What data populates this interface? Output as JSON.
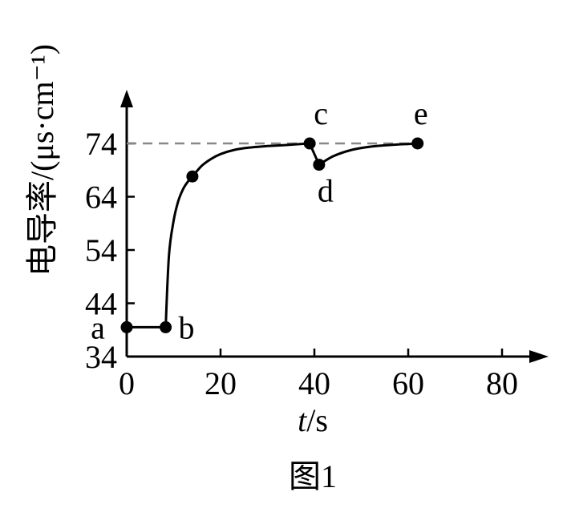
{
  "chart_data": {
    "type": "line",
    "title": "",
    "xlabel": "t/s",
    "ylabel": "电导率/(μs·cm⁻¹)",
    "caption": "图1",
    "xlim": [
      0,
      90
    ],
    "ylim": [
      34,
      82
    ],
    "x_ticks": [
      0,
      20,
      40,
      60,
      80
    ],
    "y_ticks": [
      34,
      44,
      54,
      64,
      74
    ],
    "grid": false,
    "reference_line": {
      "y": 74,
      "style": "dashed"
    },
    "series": [
      {
        "x": [
          0,
          8.3,
          9,
          10,
          11,
          12,
          13,
          14,
          16,
          18,
          20,
          23,
          26,
          30,
          34,
          39,
          41,
          44,
          48,
          52,
          56,
          60,
          62
        ],
        "y": [
          39.5,
          39.5,
          53,
          59.5,
          63.2,
          65.4,
          66.8,
          67.8,
          69.8,
          71.1,
          72.0,
          72.8,
          73.2,
          73.5,
          73.7,
          74.0,
          70.0,
          71.6,
          72.8,
          73.4,
          73.7,
          73.9,
          74.0
        ]
      }
    ],
    "labeled_points": [
      {
        "label": "a",
        "x": 0,
        "y": 39.5
      },
      {
        "label": "b",
        "x": 8.3,
        "y": 39.5
      },
      {
        "label": "",
        "x": 14,
        "y": 67.8
      },
      {
        "label": "c",
        "x": 39,
        "y": 74.0
      },
      {
        "label": "d",
        "x": 41,
        "y": 70.0
      },
      {
        "label": "e",
        "x": 62,
        "y": 74.0
      }
    ]
  }
}
